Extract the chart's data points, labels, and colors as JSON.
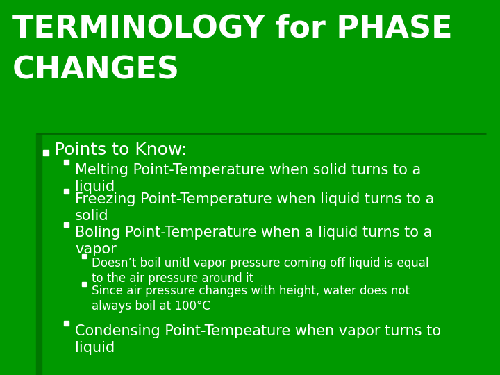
{
  "bg_color": "#009900",
  "title_color": "#FFFFFF",
  "title_line1": "TERMINOLOGY for PHASE",
  "title_line2": "CHANGES",
  "title_fontsize": 32,
  "title_fontweight": "bold",
  "divider_color": "#006600",
  "bullet_color": "#FFFFFF",
  "left_bar_color": "#007700",
  "level1_text": "Points to Know:",
  "level1_fontsize": 18,
  "level2_fontsize": 15,
  "level3_fontsize": 12,
  "items": [
    {
      "level": 2,
      "text": "Melting Point-Temperature when solid turns to a\nliquid"
    },
    {
      "level": 2,
      "text": "Freezing Point-Temperature when liquid turns to a\nsolid"
    },
    {
      "level": 2,
      "text": "Boling Point-Temperature when a liquid turns to a\nvapor"
    },
    {
      "level": 3,
      "text": "Doesn’t boil unitl vapor pressure coming off liquid is equal\nto the air pressure around it"
    },
    {
      "level": 3,
      "text": "Since air pressure changes with height, water does not\nalways boil at 100°C"
    },
    {
      "level": 2,
      "text": "Condensing Point-Tempeature when vapor turns to\nliquid"
    }
  ]
}
